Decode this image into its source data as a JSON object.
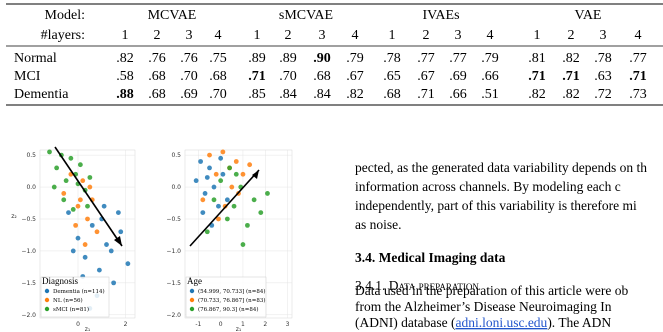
{
  "table": {
    "header": {
      "model_label": "Model:",
      "groups": [
        "MCVAE",
        "sMCVAE",
        "IVAEs",
        "VAE"
      ],
      "layers_label": "#layers:",
      "layers": [
        "1",
        "2",
        "3",
        "4",
        "1",
        "2",
        "3",
        "4",
        "1",
        "2",
        "3",
        "4",
        "1",
        "2",
        "3",
        "4"
      ]
    },
    "rows": [
      {
        "label": "Normal",
        "cells": [
          {
            "text": ".82"
          },
          {
            "text": ".76"
          },
          {
            "text": ".76"
          },
          {
            "text": ".75"
          },
          {
            "text": ".89"
          },
          {
            "text": ".89"
          },
          {
            "text": ".90",
            "bold": true
          },
          {
            "text": ".79"
          },
          {
            "text": ".78"
          },
          {
            "text": ".77"
          },
          {
            "text": ".77"
          },
          {
            "text": ".79"
          },
          {
            "text": ".81"
          },
          {
            "text": ".82"
          },
          {
            "text": ".78"
          },
          {
            "text": ".77"
          }
        ]
      },
      {
        "label": "MCI",
        "cells": [
          {
            "text": ".58"
          },
          {
            "text": ".68"
          },
          {
            "text": ".70"
          },
          {
            "text": ".68"
          },
          {
            "text": ".71",
            "bold": true
          },
          {
            "text": ".70"
          },
          {
            "text": ".68"
          },
          {
            "text": ".67"
          },
          {
            "text": ".65"
          },
          {
            "text": ".67"
          },
          {
            "text": ".69"
          },
          {
            "text": ".66"
          },
          {
            "text": ".71",
            "bold": true
          },
          {
            "text": ".71",
            "bold": true
          },
          {
            "text": ".63"
          },
          {
            "text": ".71",
            "bold": true
          }
        ]
      },
      {
        "label": "Dementia",
        "cells": [
          {
            "text": ".88",
            "bold": true
          },
          {
            "text": ".68"
          },
          {
            "text": ".69"
          },
          {
            "text": ".70"
          },
          {
            "text": ".85"
          },
          {
            "text": ".84"
          },
          {
            "text": ".84"
          },
          {
            "text": ".82"
          },
          {
            "text": ".68"
          },
          {
            "text": ".71"
          },
          {
            "text": ".66"
          },
          {
            "text": ".51"
          },
          {
            "text": ".82"
          },
          {
            "text": ".82"
          },
          {
            "text": ".72"
          },
          {
            "text": ".73"
          }
        ]
      }
    ]
  },
  "chart_data": [
    {
      "type": "scatter",
      "legend_title": "Diagnosis",
      "legend": "lower left",
      "xlabel": "z₁",
      "ylabel": "z₂",
      "xlim": [
        -1.6,
        2.4
      ],
      "ylim": [
        -2.05,
        0.58
      ],
      "xticks": [
        0,
        2
      ],
      "yticks": [
        0.5,
        {
          "value": 0,
          "label": "0.0"
        },
        {
          "value": -0.5,
          "label": "−0.5"
        },
        {
          "value": -1,
          "label": "−1.0"
        },
        {
          "value": -1.5,
          "label": "−1.5"
        },
        {
          "value": -2,
          "label": "−2.0"
        }
      ],
      "series": [
        {
          "name": "Dementia (n=114)",
          "color": "#1f77b4",
          "x": [
            -0.4,
            0.0,
            0.3,
            0.6,
            0.9,
            1.2,
            1.5,
            1.8,
            2.1,
            0.8,
            1.1,
            1.4,
            0.5,
            1.7,
            0.2,
            1.0,
            -0.2
          ],
          "values": [
            -0.4,
            -0.8,
            -1.1,
            -0.6,
            -1.3,
            -0.9,
            -1.5,
            -0.7,
            -1.2,
            -1.7,
            -0.3,
            -1.0,
            -1.9,
            -0.4,
            -1.4,
            -0.5,
            -1.0
          ]
        },
        {
          "name": "NL (n=56)",
          "color": "#ff7f0e",
          "x": [
            -0.6,
            -0.3,
            0.0,
            0.2,
            0.4,
            0.6,
            0.8,
            -0.1,
            0.3,
            0.5,
            0.1
          ],
          "values": [
            -0.1,
            0.2,
            -0.3,
            0.1,
            -0.5,
            -0.2,
            -0.7,
            -0.6,
            -0.9,
            0.0,
            -0.2
          ]
        },
        {
          "name": "sMCI (n=81)",
          "color": "#2ca02c",
          "x": [
            -1.2,
            -0.9,
            -0.7,
            -0.5,
            -0.3,
            -0.1,
            0.1,
            0.3,
            0.5,
            -0.6,
            -0.2,
            0.0,
            0.4,
            -1.0
          ],
          "values": [
            0.55,
            0.3,
            0.5,
            0.1,
            0.45,
            0.2,
            0.35,
            -0.05,
            0.15,
            -0.2,
            -0.35,
            0.05,
            -0.3,
            0.0
          ]
        }
      ]
    },
    {
      "type": "scatter",
      "legend_title": "Age",
      "legend": "lower left",
      "xlabel": "z₁",
      "xlim": [
        -1.6,
        3.2
      ],
      "ylim": [
        -2.05,
        0.58
      ],
      "xticks": [
        -1,
        0,
        1,
        2,
        3
      ],
      "yticks": [
        0.5,
        {
          "value": 0,
          "label": "0.0"
        },
        {
          "value": -0.5,
          "label": "−0.5"
        },
        {
          "value": -1,
          "label": "−1.0"
        },
        {
          "value": -1.5,
          "label": "−1.5"
        },
        {
          "value": -2,
          "label": "−2.0"
        }
      ],
      "series": [
        {
          "name": "(54.999, 70.733] (n=84)",
          "color": "#1f77b4",
          "x": [
            -1.1,
            -0.9,
            -0.7,
            -0.5,
            -0.3,
            -0.1,
            0.1,
            -0.8,
            -0.4,
            0.0,
            -0.6,
            0.3
          ],
          "values": [
            0.1,
            0.4,
            -0.1,
            0.3,
            0.0,
            -0.3,
            0.2,
            -0.4,
            -0.6,
            0.45,
            0.15,
            -0.2
          ]
        },
        {
          "name": "(70.733, 76.867] (n=83)",
          "color": "#ff7f0e",
          "x": [
            -0.5,
            -0.2,
            0.1,
            0.4,
            0.7,
            1.0,
            -0.8,
            0.2,
            0.5,
            1.3,
            -0.1,
            0.8
          ],
          "values": [
            0.5,
            0.2,
            0.55,
            0.3,
            0.4,
            0.2,
            -0.2,
            -0.3,
            0.0,
            0.35,
            -0.5,
            -0.1
          ]
        },
        {
          "name": "(76.867, 90.3] (n=84)",
          "color": "#2ca02c",
          "x": [
            -0.3,
            0.0,
            0.3,
            0.6,
            0.9,
            1.2,
            1.5,
            1.8,
            2.1,
            0.4,
            1.0,
            -0.6,
            0.7
          ],
          "values": [
            -0.2,
            0.1,
            -0.5,
            -0.3,
            0.0,
            -0.6,
            -0.2,
            -0.4,
            -0.1,
            0.3,
            -0.9,
            -0.7,
            0.2
          ]
        }
      ]
    }
  ],
  "text": {
    "paragraph": [
      "pected, as the generated data variability depends on th",
      "information across channels. By modeling each c",
      "independently, part of this variability is therefore mi",
      "as noise."
    ],
    "section": "3.4. Medical Imaging data",
    "subsection": "3.4.1. Data preparation",
    "paragraph2": [
      "Data used in the preparation of this article were ob",
      "from the Alzheimer’s Disease Neuroimaging In"
    ],
    "last_line": [
      "(ADNI) database (",
      "adni.loni.usc.edu",
      ").  The ADN"
    ]
  }
}
